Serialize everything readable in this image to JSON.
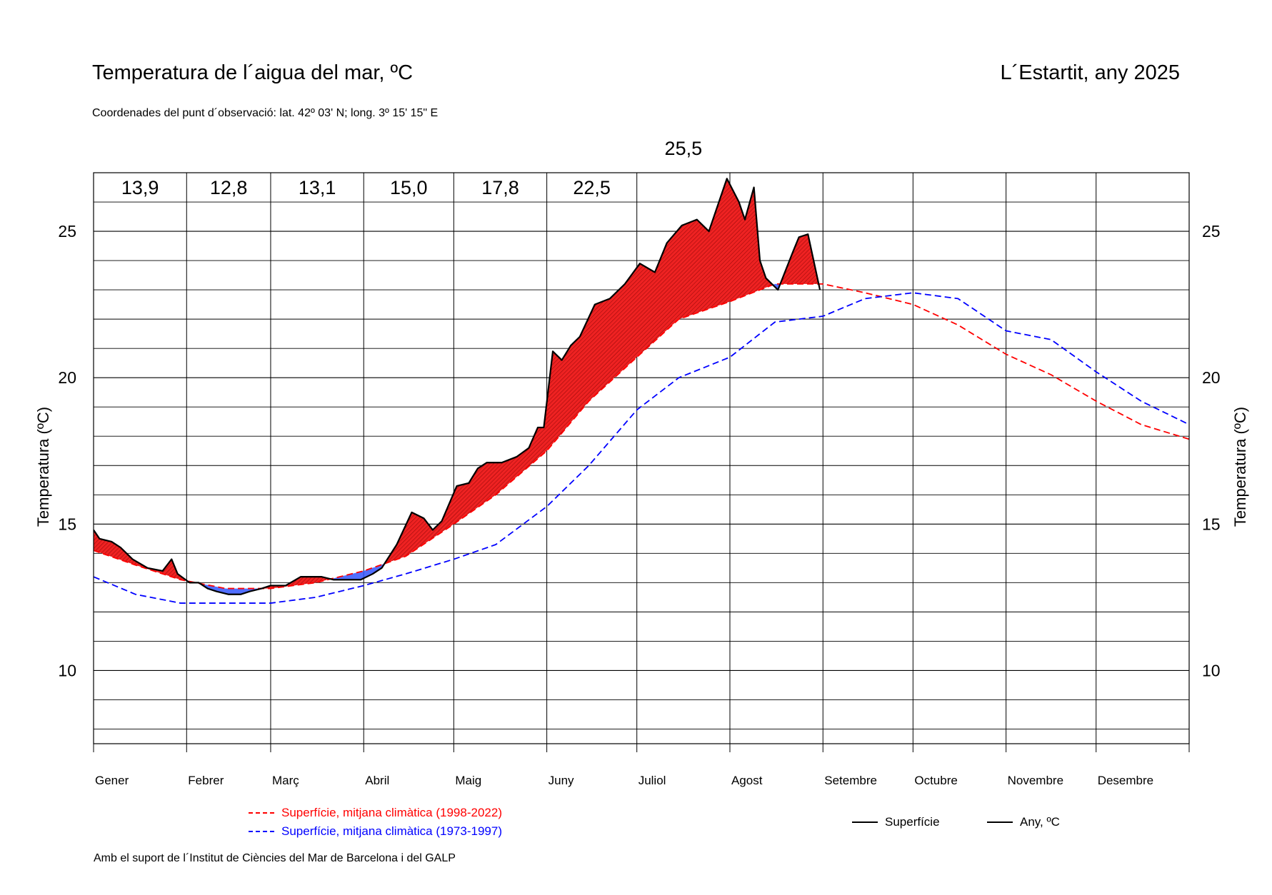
{
  "header": {
    "title": "Temperatura de l´aigua del mar, ºC",
    "location": "L´Estartit, any 2025",
    "coords": "Coordenades del punt d´observació: lat. 42º 03' N; long. 3º 15' 15\" E"
  },
  "footer": "Amb el suport de l´Institut de Ciències del Mar de Barcelona i del GALP",
  "legend": {
    "red": "Superfície, mitjana climàtica (1998-2022)",
    "blue": "Superfície, mitjana climàtica (1973-1997)",
    "surface": "Superfície",
    "year": "Any,  ºC"
  },
  "chart_data": {
    "type": "line",
    "ylabel": "Temperatura (ºC)",
    "ylim": [
      7.5,
      27
    ],
    "yticks": [
      10,
      15,
      20,
      25
    ],
    "grid": true,
    "months": [
      "Gener",
      "Febrer",
      "Març",
      "Abril",
      "Maig",
      "Juny",
      "Juliol",
      "Agost",
      "Setembre",
      "Octubre",
      "Novembre",
      "Desembre"
    ],
    "month_starts": [
      1,
      32,
      60,
      91,
      121,
      152,
      182,
      213,
      244,
      274,
      305,
      335,
      366
    ],
    "monthly_means": [
      "13,9",
      "12,8",
      "13,1",
      "15,0",
      "17,8",
      "22,5",
      "25,5",
      "",
      "",
      "",
      "",
      ""
    ],
    "colors": {
      "recent_climate": "#ff0000",
      "old_climate": "#0000ff",
      "observed": "#000000",
      "warm_fill": "#ff0000",
      "cool_fill": "#3355ff"
    },
    "series": [
      {
        "name": "Superfície, mitjana climàtica (1998-2022)",
        "x": [
          1,
          15,
          30,
          45,
          60,
          75,
          91,
          105,
          121,
          135,
          152,
          166,
          182,
          196,
          213,
          228,
          244,
          258,
          274,
          289,
          305,
          320,
          335,
          350,
          366
        ],
        "y": [
          14.1,
          13.6,
          13.1,
          12.8,
          12.8,
          13.0,
          13.4,
          13.9,
          15.0,
          16.0,
          17.5,
          19.2,
          20.7,
          22.0,
          22.6,
          23.2,
          23.2,
          22.9,
          22.5,
          21.8,
          20.8,
          20.1,
          19.2,
          18.4,
          17.9
        ]
      },
      {
        "name": "Superfície, mitjana climàtica (1973-1997)",
        "x": [
          1,
          15,
          30,
          45,
          60,
          75,
          91,
          105,
          121,
          135,
          152,
          166,
          182,
          196,
          213,
          228,
          244,
          258,
          274,
          289,
          305,
          320,
          335,
          350,
          366
        ],
        "y": [
          13.2,
          12.6,
          12.3,
          12.3,
          12.3,
          12.5,
          12.9,
          13.3,
          13.8,
          14.3,
          15.6,
          17.0,
          18.9,
          20.0,
          20.7,
          21.9,
          22.1,
          22.7,
          22.9,
          22.7,
          21.6,
          21.3,
          20.2,
          19.2,
          18.4
        ]
      },
      {
        "name": "Superfície",
        "x": [
          1,
          3,
          7,
          10,
          14,
          19,
          24,
          27,
          29,
          33,
          36,
          39,
          42,
          46,
          50,
          53,
          57,
          60,
          62,
          65,
          70,
          73,
          77,
          81,
          86,
          90,
          94,
          97,
          102,
          107,
          111,
          114,
          117,
          122,
          126,
          129,
          132,
          137,
          142,
          146,
          149,
          151,
          154,
          157,
          160,
          163,
          168,
          173,
          178,
          183,
          188,
          192,
          197,
          202,
          206,
          212,
          216,
          218,
          221,
          223,
          225,
          229,
          234,
          236,
          239,
          243
        ],
        "y": [
          14.8,
          14.5,
          14.4,
          14.2,
          13.8,
          13.5,
          13.4,
          13.8,
          13.3,
          13.0,
          13.0,
          12.8,
          12.7,
          12.6,
          12.6,
          12.7,
          12.8,
          12.9,
          12.9,
          12.9,
          13.2,
          13.2,
          13.2,
          13.1,
          13.1,
          13.1,
          13.3,
          13.5,
          14.3,
          15.4,
          15.2,
          14.8,
          15.1,
          16.3,
          16.4,
          16.9,
          17.1,
          17.1,
          17.3,
          17.6,
          18.3,
          18.3,
          20.9,
          20.6,
          21.1,
          21.4,
          22.5,
          22.7,
          23.2,
          23.9,
          23.6,
          24.6,
          25.2,
          25.4,
          25.0,
          26.8,
          26.0,
          25.4,
          26.5,
          24.0,
          23.4,
          23.0,
          24.3,
          24.8,
          24.9,
          23.0
        ]
      }
    ]
  }
}
